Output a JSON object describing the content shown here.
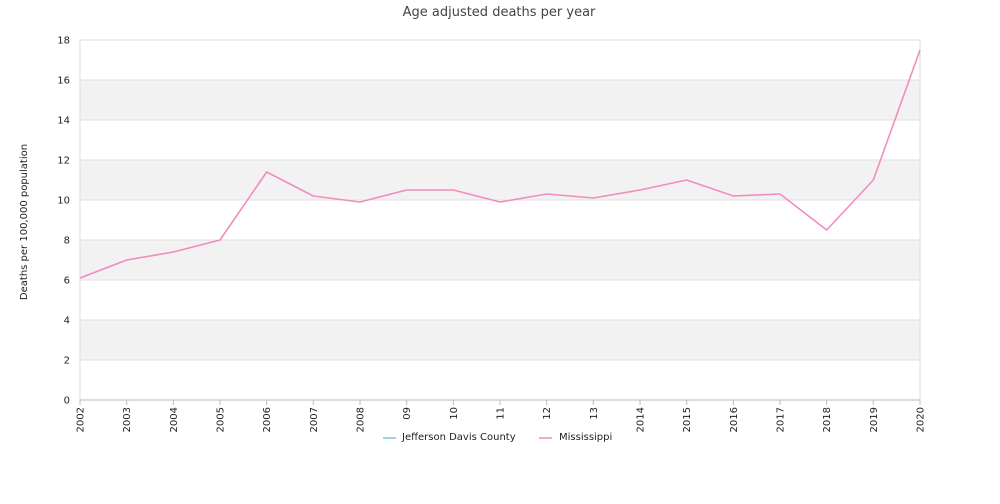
{
  "chart_data": {
    "type": "line",
    "title": "Age adjusted deaths per year",
    "xlabel": "",
    "ylabel": "Deaths per 100,000 population",
    "categories": [
      "2002",
      "2003",
      "2004",
      "2005",
      "2006",
      "2007",
      "2008",
      "09",
      "10",
      "11",
      "12",
      "13",
      "2014",
      "2015",
      "2016",
      "2017",
      "2018",
      "2019",
      "2020"
    ],
    "ylim": [
      0,
      18
    ],
    "yticks": [
      0,
      2,
      4,
      6,
      8,
      10,
      12,
      14,
      16,
      18
    ],
    "grid": "alternating horizontal bands",
    "legend_position": "bottom",
    "series": [
      {
        "name": "Jefferson Davis County",
        "color": "#7fc8d0",
        "values": [
          null,
          null,
          null,
          null,
          null,
          null,
          null,
          null,
          null,
          null,
          null,
          null,
          null,
          null,
          null,
          null,
          null,
          null,
          null
        ]
      },
      {
        "name": "Mississippi",
        "color": "#f28cc0",
        "values": [
          6.1,
          7.0,
          7.4,
          8.0,
          11.4,
          10.2,
          9.9,
          10.5,
          10.5,
          9.9,
          10.3,
          10.1,
          10.5,
          11.0,
          10.2,
          10.3,
          8.5,
          11.0,
          17.5
        ]
      }
    ]
  }
}
